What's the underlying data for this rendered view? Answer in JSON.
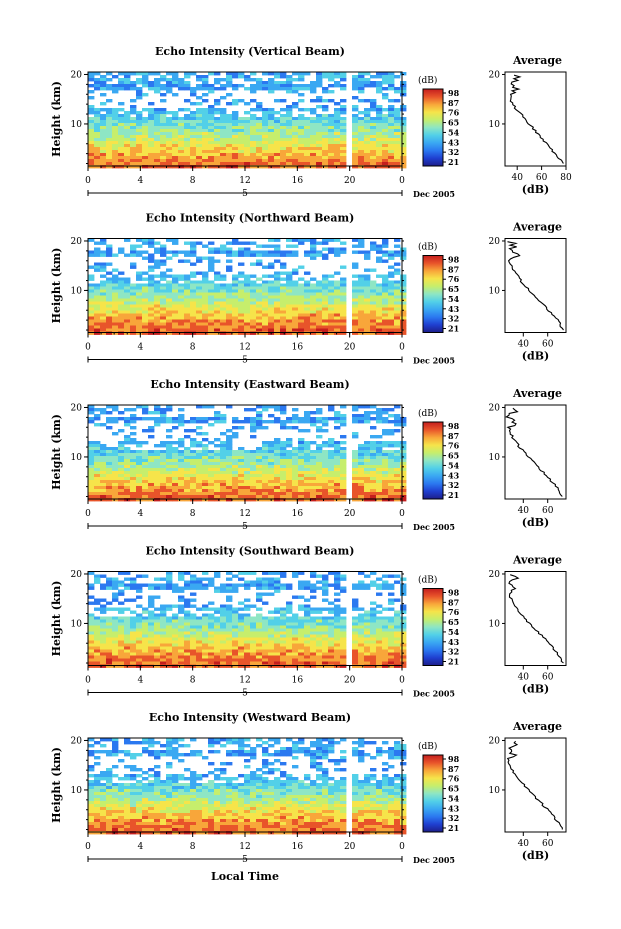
{
  "colors": {
    "colormap": [
      "#1d1e8a",
      "#1f3fd0",
      "#2b78f0",
      "#3aa8f2",
      "#52d0e8",
      "#8ee6c4",
      "#c6ee6c",
      "#f6e44a",
      "#f8a63a",
      "#e8542a",
      "#c41e1e"
    ],
    "background": "#ffffff",
    "profile_line": "#000000"
  },
  "colorbar": {
    "unit": "(dB)",
    "ticks": [
      "98",
      "87",
      "76",
      "65",
      "54",
      "43",
      "32",
      "21"
    ]
  },
  "x_axis": {
    "ticks": [
      "0",
      "4",
      "8",
      "12",
      "16",
      "20",
      "0"
    ],
    "date_marker": "5",
    "date_label": "Dec 2005",
    "xlabel": "Local Time"
  },
  "y_axis": {
    "ylabel": "Height (km)",
    "ticks": [
      "10",
      "20"
    ]
  },
  "average_panel": {
    "title": "Average",
    "xlabel": "(dB)",
    "yticks": [
      "10",
      "20"
    ]
  },
  "panels": [
    {
      "title": "Echo Intensity (Vertical Beam)",
      "cbar_ticks": [
        "98",
        "87",
        "76",
        "65",
        "54",
        "43",
        "32",
        "21"
      ],
      "avg_xticks": [
        "40",
        "60",
        "80"
      ]
    },
    {
      "title": "Echo Intensity (Northward Beam)",
      "cbar_ticks": [
        "98",
        "87",
        "76",
        "65",
        "54",
        "43",
        "32",
        "21"
      ],
      "avg_xticks": [
        "40",
        "60"
      ]
    },
    {
      "title": "Echo Intensity (Eastward Beam)",
      "cbar_ticks": [
        "98",
        "87",
        "76",
        "65",
        "54",
        "43",
        "32",
        "21"
      ],
      "avg_xticks": [
        "40",
        "60"
      ]
    },
    {
      "title": "Echo Intensity (Southward Beam)",
      "cbar_ticks": [
        "98",
        "87",
        "76",
        "65",
        "54",
        "43",
        "32",
        "21"
      ],
      "avg_xticks": [
        "40",
        "60"
      ]
    },
    {
      "title": "Echo Intensity (Westward Beam)",
      "cbar_ticks": [
        "98",
        "87",
        "76",
        "65",
        "54",
        "43",
        "32",
        "21"
      ],
      "avg_xticks": [
        "40",
        "60"
      ]
    }
  ],
  "chart_data": [
    {
      "type": "heatmap",
      "title": "Echo Intensity (Vertical Beam)",
      "xlabel": "",
      "ylabel": "Height (km)",
      "xlim": [
        0,
        24
      ],
      "ylim": [
        1.5,
        20.5
      ],
      "x_ticks": [
        0,
        4,
        8,
        12,
        16,
        20,
        24
      ],
      "y_ticks": [
        10,
        20
      ],
      "colorbar_label": "(dB)",
      "colorbar_ticks": [
        98,
        87,
        76,
        65,
        54,
        43,
        32,
        21
      ],
      "data_gap_hours": [
        19.6,
        20.0
      ],
      "average_profile": {
        "xlim": [
          30,
          80
        ],
        "x_ticks": [
          40,
          60,
          80
        ],
        "y_ticks": [
          10,
          20
        ],
        "heights": [
          2,
          4,
          6,
          8,
          10,
          12,
          14,
          16,
          17,
          18,
          19,
          20
        ],
        "values": [
          78,
          71,
          64,
          57,
          50,
          43,
          36,
          34,
          40,
          35,
          41,
          38
        ]
      }
    },
    {
      "type": "heatmap",
      "title": "Echo Intensity (Northward Beam)",
      "xlabel": "",
      "ylabel": "Height (km)",
      "xlim": [
        0,
        24
      ],
      "ylim": [
        1.5,
        20.5
      ],
      "x_ticks": [
        0,
        4,
        8,
        12,
        16,
        20,
        24
      ],
      "y_ticks": [
        10,
        20
      ],
      "colorbar_label": "(dB)",
      "colorbar_ticks": [
        98,
        87,
        76,
        65,
        54,
        43,
        32,
        21
      ],
      "data_gap_hours": [
        19.6,
        20.0
      ],
      "average_profile": {
        "xlim": [
          25,
          75
        ],
        "x_ticks": [
          40,
          60
        ],
        "y_ticks": [
          10,
          20
        ],
        "heights": [
          2,
          4,
          6,
          8,
          10,
          12,
          14,
          16,
          17,
          18,
          19,
          20
        ],
        "values": [
          73,
          68,
          61,
          53,
          45,
          38,
          32,
          28,
          34,
          29,
          33,
          30
        ]
      }
    },
    {
      "type": "heatmap",
      "title": "Echo Intensity (Eastward Beam)",
      "xlabel": "",
      "ylabel": "Height (km)",
      "xlim": [
        0,
        24
      ],
      "ylim": [
        1.5,
        20.5
      ],
      "x_ticks": [
        0,
        4,
        8,
        12,
        16,
        20,
        24
      ],
      "y_ticks": [
        10,
        20
      ],
      "colorbar_label": "(dB)",
      "colorbar_ticks": [
        98,
        87,
        76,
        65,
        54,
        43,
        32,
        21
      ],
      "data_gap_hours": [
        19.6,
        20.0
      ],
      "average_profile": {
        "xlim": [
          25,
          75
        ],
        "x_ticks": [
          40,
          60
        ],
        "y_ticks": [
          10,
          20
        ],
        "heights": [
          2,
          4,
          6,
          8,
          10,
          12,
          14,
          16,
          17,
          18,
          19,
          20
        ],
        "values": [
          72,
          67,
          60,
          52,
          44,
          37,
          31,
          28,
          33,
          29,
          32,
          30
        ]
      }
    },
    {
      "type": "heatmap",
      "title": "Echo Intensity (Southward Beam)",
      "xlabel": "",
      "ylabel": "Height (km)",
      "xlim": [
        0,
        24
      ],
      "ylim": [
        1.5,
        20.5
      ],
      "x_ticks": [
        0,
        4,
        8,
        12,
        16,
        20,
        24
      ],
      "y_ticks": [
        10,
        20
      ],
      "colorbar_label": "(dB)",
      "colorbar_ticks": [
        98,
        87,
        76,
        65,
        54,
        43,
        32,
        21
      ],
      "data_gap_hours": [
        19.6,
        20.0
      ],
      "average_profile": {
        "xlim": [
          25,
          75
        ],
        "x_ticks": [
          40,
          60
        ],
        "y_ticks": [
          10,
          20
        ],
        "heights": [
          2,
          4,
          6,
          8,
          10,
          12,
          14,
          16,
          17,
          18,
          19,
          20
        ],
        "values": [
          73,
          68,
          61,
          53,
          45,
          38,
          32,
          28,
          34,
          29,
          33,
          30
        ]
      }
    },
    {
      "type": "heatmap",
      "title": "Echo Intensity (Westward Beam)",
      "xlabel": "Local Time",
      "ylabel": "Height (km)",
      "xlim": [
        0,
        24
      ],
      "ylim": [
        1.5,
        20.5
      ],
      "x_ticks": [
        0,
        4,
        8,
        12,
        16,
        20,
        24
      ],
      "y_ticks": [
        10,
        20
      ],
      "colorbar_label": "(dB)",
      "colorbar_ticks": [
        98,
        87,
        76,
        65,
        54,
        43,
        32,
        21
      ],
      "data_gap_hours": [
        19.6,
        20.0
      ],
      "average_profile": {
        "xlim": [
          25,
          75
        ],
        "x_ticks": [
          40,
          60
        ],
        "y_ticks": [
          10,
          20
        ],
        "heights": [
          2,
          4,
          6,
          8,
          10,
          12,
          14,
          16,
          17,
          18,
          19,
          20
        ],
        "values": [
          72,
          67,
          60,
          52,
          44,
          37,
          31,
          28,
          33,
          29,
          32,
          30
        ]
      }
    }
  ]
}
